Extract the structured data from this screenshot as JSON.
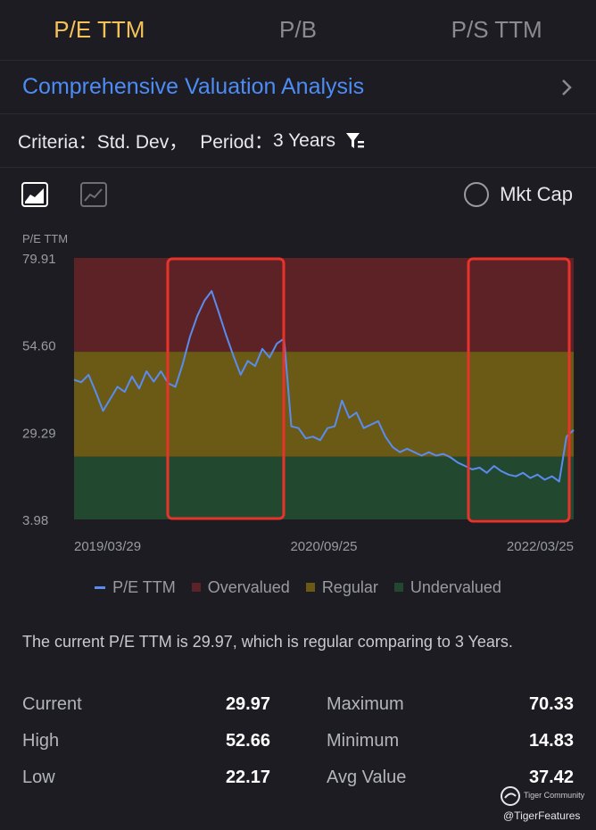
{
  "tabs": [
    {
      "label": "P/E TTM",
      "active": true
    },
    {
      "label": "P/B",
      "active": false
    },
    {
      "label": "P/S TTM",
      "active": false
    }
  ],
  "analysis": {
    "title": "Comprehensive Valuation Analysis"
  },
  "criteria": {
    "criteria_label": "Criteria：",
    "criteria_value": "Std. Dev，",
    "period_label": "Period：",
    "period_value": "3 Years"
  },
  "toolbar": {
    "mkt_cap_label": "Mkt Cap"
  },
  "chart_data": {
    "type": "line",
    "ylabel": "P/E TTM",
    "ylim": [
      3.98,
      79.91
    ],
    "yticks": [
      "79.91",
      "54.60",
      "29.29",
      "3.98"
    ],
    "xtick_labels": [
      "2019/03/29",
      "2020/09/25",
      "2022/03/25"
    ],
    "bands": [
      {
        "name": "Overvalued",
        "from": 52.66,
        "to": 79.91,
        "color": "#5c2226"
      },
      {
        "name": "Regular",
        "from": 22.17,
        "to": 52.66,
        "color": "#6a5a16"
      },
      {
        "name": "Undervalued",
        "from": 3.98,
        "to": 22.17,
        "color": "#234830"
      }
    ],
    "series": [
      {
        "name": "P/E TTM",
        "color": "#5a8cf0",
        "values": [
          44.5,
          43.8,
          46.0,
          41.0,
          35.5,
          39.0,
          42.5,
          41.0,
          45.5,
          42.0,
          47.0,
          44.0,
          47.0,
          43.5,
          42.5,
          49.0,
          57.0,
          63.0,
          67.5,
          70.3,
          64.0,
          57.5,
          51.5,
          46.0,
          50.0,
          48.5,
          53.5,
          51.0,
          55.0,
          56.5,
          31.0,
          30.5,
          27.5,
          28.0,
          27.0,
          30.5,
          31.0,
          38.5,
          33.5,
          35.0,
          30.5,
          31.5,
          32.5,
          28.0,
          25.0,
          23.5,
          24.5,
          23.5,
          22.5,
          23.5,
          22.5,
          23.0,
          22.0,
          20.5,
          19.5,
          18.5,
          19.0,
          17.5,
          19.5,
          18.0,
          17.0,
          16.5,
          17.5,
          16.0,
          17.0,
          15.5,
          16.5,
          15.0,
          28.0,
          29.97
        ]
      }
    ],
    "legend": [
      "P/E TTM",
      "Overvalued",
      "Regular",
      "Undervalued"
    ],
    "annotations": [
      "highlight box around 2019-2020 overvalued peak",
      "highlight box around 2021-2022 undervalued period"
    ]
  },
  "summary": {
    "text": "The current P/E TTM is 29.97, which is regular comparing to 3 Years."
  },
  "stats": [
    {
      "label1": "Current",
      "value1": "29.97",
      "label2": "Maximum",
      "value2": "70.33"
    },
    {
      "label1": "High",
      "value1": "52.66",
      "label2": "Minimum",
      "value2": "14.83"
    },
    {
      "label1": "Low",
      "value1": "22.17",
      "label2": "Avg Value",
      "value2": "37.42"
    }
  ],
  "watermark": {
    "community": "Tiger Community",
    "handle": "@TigerFeatures"
  }
}
